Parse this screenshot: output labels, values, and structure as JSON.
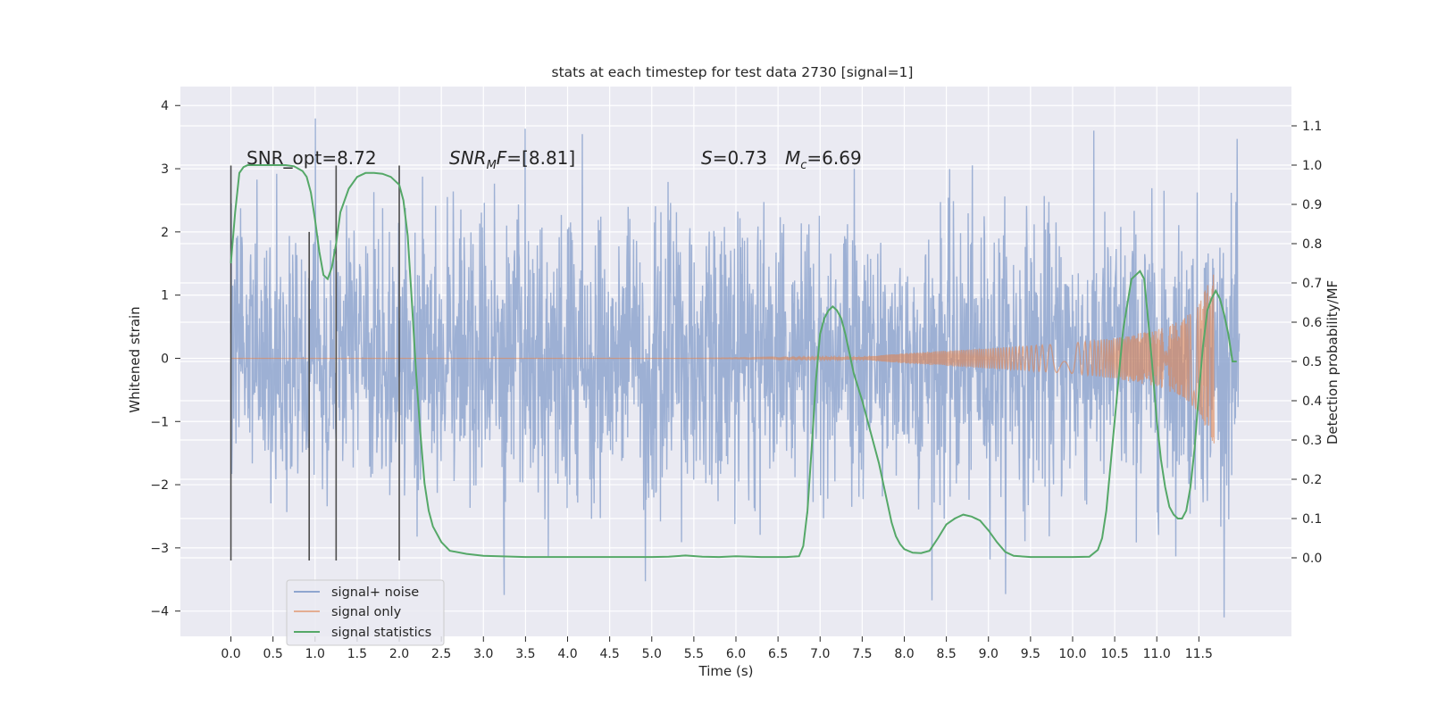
{
  "chart_data": {
    "type": "line",
    "title": "stats at each timestep for test data 2730 [signal=1]",
    "xlabel": "Time (s)",
    "ylabel_left": "Whitened strain",
    "ylabel_right": "Detection probability/MF",
    "xlim": [
      -0.6,
      12.6
    ],
    "ylim_left": [
      -4.4,
      4.3
    ],
    "ylim_right": [
      -0.2,
      1.2
    ],
    "xticks": [
      0.0,
      0.5,
      1.0,
      1.5,
      2.0,
      2.5,
      3.0,
      3.5,
      4.0,
      4.5,
      5.0,
      5.5,
      6.0,
      6.5,
      7.0,
      7.5,
      8.0,
      8.5,
      9.0,
      9.5,
      10.0,
      10.5,
      11.0,
      11.5
    ],
    "xtick_labels": [
      "0.0",
      "0.5",
      "1.0",
      "1.5",
      "2.0",
      "2.5",
      "3.0",
      "3.5",
      "4.0",
      "4.5",
      "5.0",
      "5.5",
      "6.0",
      "6.5",
      "7.0",
      "7.5",
      "8.0",
      "8.5",
      "9.0",
      "9.5",
      "10.0",
      "10.5",
      "11.0",
      "11.5"
    ],
    "yticks_left": [
      -4,
      -3,
      -2,
      -1,
      0,
      1,
      2,
      3,
      4
    ],
    "ytick_labels_left": [
      "−4",
      "−3",
      "−2",
      "−1",
      "0",
      "1",
      "2",
      "3",
      "4"
    ],
    "yticks_right": [
      0.0,
      0.1,
      0.2,
      0.3,
      0.4,
      0.5,
      0.6,
      0.7,
      0.8,
      0.9,
      1.0,
      1.1
    ],
    "ytick_labels_right": [
      "0.0",
      "0.1",
      "0.2",
      "0.3",
      "0.4",
      "0.5",
      "0.6",
      "0.7",
      "0.8",
      "0.9",
      "1.0",
      "1.1"
    ],
    "annotations": {
      "snr_opt": "SNR_opt=8.72",
      "snr_mf_base": "SNR",
      "snr_mf_sub": "M",
      "snr_mf_rest": "F=[8.81]",
      "s_label": "S",
      "s_value": "=0.73",
      "mc_base": "M",
      "mc_sub": "c",
      "mc_value": "=6.69"
    },
    "legend": {
      "placement": "lower-left",
      "entries": [
        "signal+ noise",
        "signal only",
        "signal statistics"
      ]
    },
    "series": [
      {
        "name": "signal+ noise",
        "color": "#8fa6cf",
        "description": "whitened noisy strain, roughly gaussian noise with std ~1.1 from t=0 to t=12",
        "t_range": [
          0.0,
          11.98
        ],
        "noise_std": 1.1
      },
      {
        "name": "signal only",
        "color": "#dd8452",
        "description": "chirp signal growing in amplitude, peaking near t=11.7",
        "t_peak": 11.68,
        "peak_amplitude": 1.4,
        "envelope": [
          [
            7.5,
            0.02
          ],
          [
            8.0,
            0.08
          ],
          [
            9.0,
            0.16
          ],
          [
            10.0,
            0.24
          ],
          [
            10.5,
            0.32
          ],
          [
            11.0,
            0.45
          ],
          [
            11.3,
            0.6
          ],
          [
            11.5,
            0.85
          ],
          [
            11.65,
            1.3
          ],
          [
            11.68,
            1.4
          ]
        ]
      },
      {
        "name": "signal statistics",
        "color": "#55a868",
        "x": [
          0.0,
          0.05,
          0.1,
          0.15,
          0.2,
          0.3,
          0.5,
          0.65,
          0.75,
          0.85,
          0.9,
          0.95,
          1.0,
          1.05,
          1.1,
          1.15,
          1.2,
          1.25,
          1.3,
          1.4,
          1.5,
          1.6,
          1.7,
          1.8,
          1.9,
          2.0,
          2.05,
          2.1,
          2.15,
          2.2,
          2.25,
          2.3,
          2.35,
          2.4,
          2.5,
          2.6,
          2.8,
          3.0,
          3.5,
          4.0,
          4.5,
          5.0,
          5.2,
          5.4,
          5.6,
          5.8,
          6.0,
          6.3,
          6.6,
          6.75,
          6.8,
          6.85,
          6.9,
          6.95,
          7.0,
          7.05,
          7.1,
          7.15,
          7.2,
          7.25,
          7.3,
          7.4,
          7.5,
          7.6,
          7.7,
          7.75,
          7.8,
          7.85,
          7.9,
          7.95,
          8.0,
          8.1,
          8.2,
          8.3,
          8.4,
          8.5,
          8.6,
          8.7,
          8.8,
          8.9,
          9.0,
          9.1,
          9.2,
          9.3,
          9.5,
          9.8,
          10.0,
          10.2,
          10.3,
          10.35,
          10.4,
          10.5,
          10.6,
          10.7,
          10.8,
          10.85,
          10.9,
          10.95,
          11.0,
          11.05,
          11.1,
          11.15,
          11.2,
          11.25,
          11.3,
          11.35,
          11.4,
          11.45,
          11.5,
          11.55,
          11.6,
          11.65,
          11.7,
          11.75,
          11.8,
          11.85,
          11.9,
          11.95
        ],
        "values": [
          0.75,
          0.88,
          0.98,
          0.995,
          1.0,
          1.0,
          1.0,
          1.0,
          0.997,
          0.985,
          0.97,
          0.93,
          0.86,
          0.78,
          0.72,
          0.71,
          0.74,
          0.8,
          0.88,
          0.94,
          0.97,
          0.98,
          0.98,
          0.978,
          0.97,
          0.95,
          0.91,
          0.82,
          0.65,
          0.47,
          0.32,
          0.19,
          0.12,
          0.08,
          0.04,
          0.018,
          0.01,
          0.005,
          0.002,
          0.002,
          0.002,
          0.002,
          0.003,
          0.006,
          0.003,
          0.002,
          0.004,
          0.002,
          0.002,
          0.004,
          0.03,
          0.12,
          0.28,
          0.45,
          0.57,
          0.61,
          0.63,
          0.64,
          0.63,
          0.61,
          0.57,
          0.47,
          0.4,
          0.32,
          0.24,
          0.19,
          0.14,
          0.09,
          0.055,
          0.035,
          0.022,
          0.013,
          0.012,
          0.018,
          0.05,
          0.085,
          0.1,
          0.11,
          0.105,
          0.095,
          0.07,
          0.04,
          0.015,
          0.005,
          0.002,
          0.002,
          0.002,
          0.003,
          0.02,
          0.05,
          0.12,
          0.35,
          0.58,
          0.71,
          0.73,
          0.71,
          0.6,
          0.48,
          0.35,
          0.25,
          0.18,
          0.13,
          0.11,
          0.1,
          0.1,
          0.12,
          0.18,
          0.28,
          0.42,
          0.54,
          0.63,
          0.66,
          0.68,
          0.66,
          0.62,
          0.57,
          0.5,
          0.5
        ]
      }
    ],
    "vertical_markers": [
      {
        "x": 0.0,
        "ymin": -3.2,
        "ymax": 3.05
      },
      {
        "x": 0.93,
        "ymin": -3.2,
        "ymax": 2.0
      },
      {
        "x": 1.25,
        "ymin": -3.2,
        "ymax": 3.05
      },
      {
        "x": 2.0,
        "ymin": -3.2,
        "ymax": 3.05
      }
    ],
    "marker_color": "#4c4c4c"
  }
}
